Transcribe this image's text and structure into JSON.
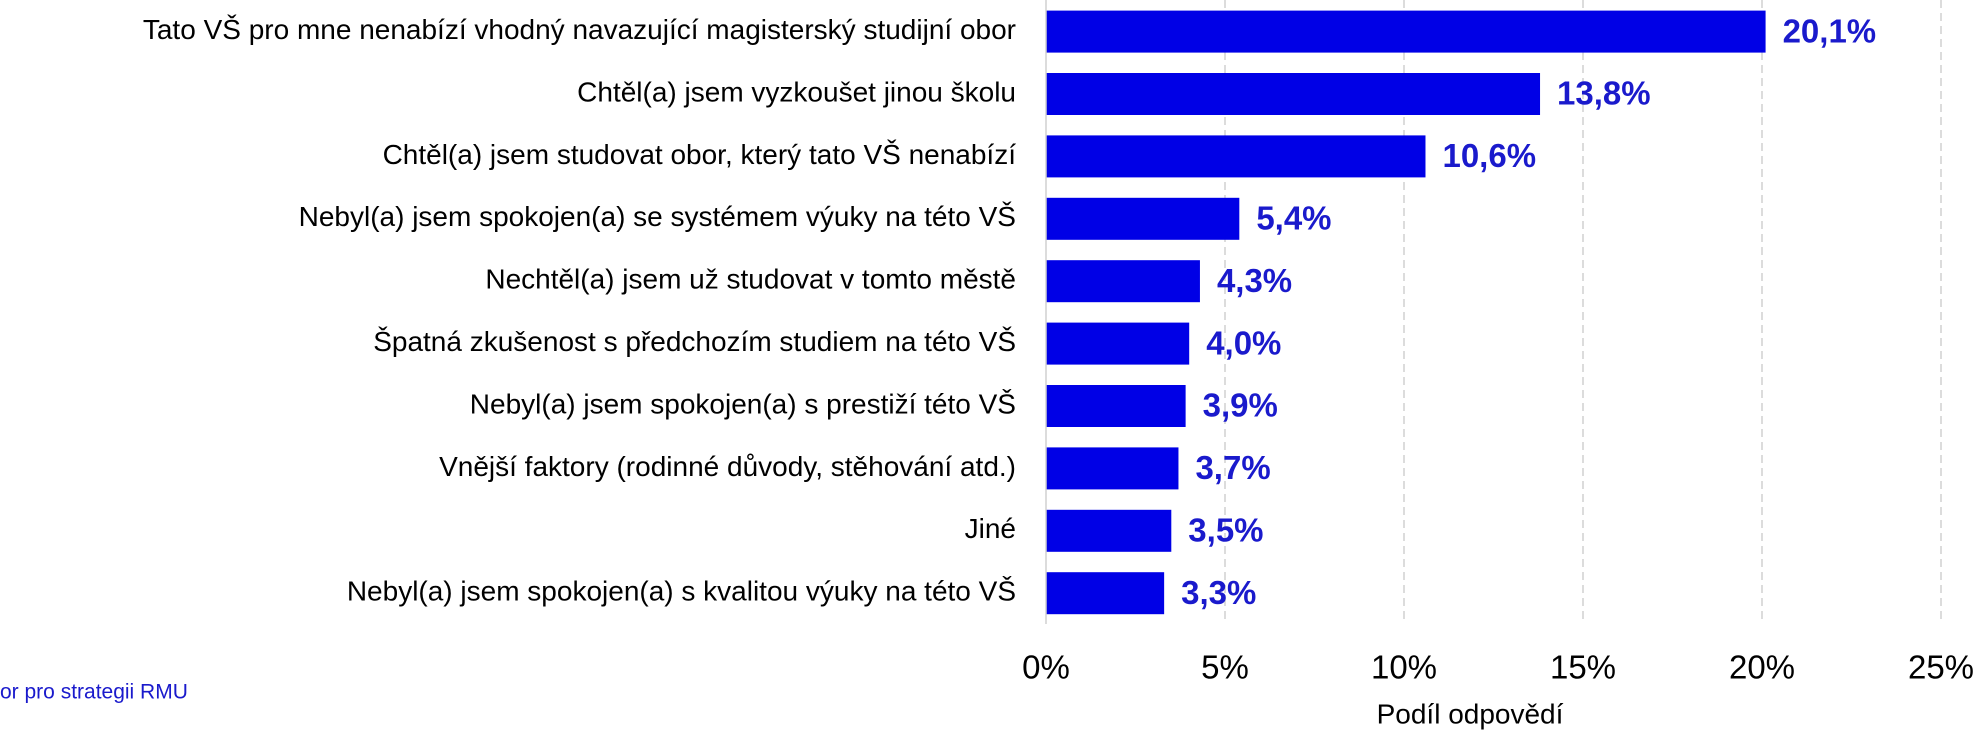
{
  "chart_data": {
    "type": "bar",
    "orientation": "horizontal",
    "categories": [
      "Tato VŠ pro mne nenabízí vhodný navazující magisterský studijní obor",
      "Chtěl(a) jsem vyzkoušet jinou školu",
      "Chtěl(a) jsem studovat obor, který tato VŠ nenabízí",
      "Nebyl(a) jsem spokojen(a) se systémem výuky na této VŠ",
      "Nechtěl(a) jsem už studovat v tomto městě",
      "Špatná zkušenost s předchozím studiem na této VŠ",
      "Nebyl(a) jsem spokojen(a) s prestiží této VŠ",
      "Vnější faktory (rodinné důvody, stěhování atd.)",
      "Jiné",
      "Nebyl(a) jsem spokojen(a) s kvalitou výuky na této VŠ"
    ],
    "values": [
      20.1,
      13.8,
      10.6,
      5.4,
      4.3,
      4.0,
      3.9,
      3.7,
      3.5,
      3.3
    ],
    "value_labels": [
      "20,1%",
      "13,8%",
      "10,6%",
      "5,4%",
      "4,3%",
      "4,0%",
      "3,9%",
      "3,7%",
      "3,5%",
      "3,3%"
    ],
    "color": "#0000e6",
    "label_color": "#1a1acc",
    "xlim": [
      0,
      25
    ],
    "xticks": [
      {
        "value": 0,
        "label": "0%"
      },
      {
        "value": 5,
        "label": "5%"
      },
      {
        "value": 10,
        "label": "10%"
      },
      {
        "value": 15,
        "label": "15%"
      },
      {
        "value": 20,
        "label": "20%"
      },
      {
        "value": 25,
        "label": "25%"
      }
    ],
    "xlabel": "Podíl odpovědí",
    "grid": true,
    "source": "or pro strategii RMU"
  }
}
